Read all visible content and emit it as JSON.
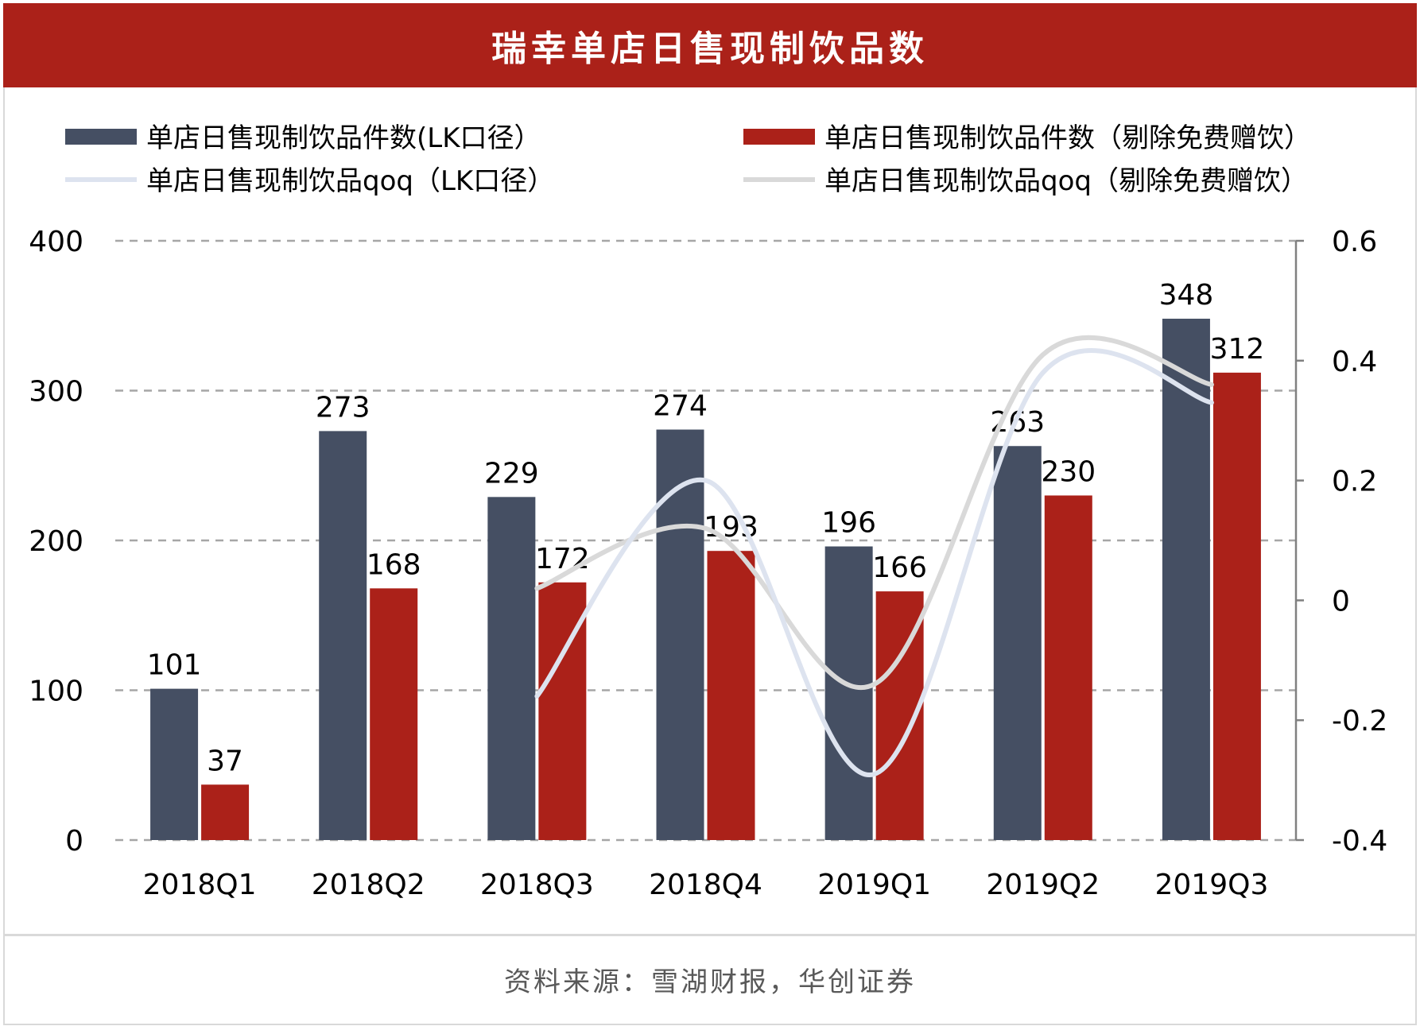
{
  "title": "瑞幸单店日售现制饮品数",
  "source": "资料来源：雪湖财报，华创证券",
  "colors": {
    "header_bg": "#ab2119",
    "bar_lk": "#454f63",
    "bar_excl": "#ab2119",
    "line_lk": "#dde3ef",
    "line_excl": "#d9d9d9"
  },
  "chart_data": {
    "type": "bar",
    "categories": [
      "2018Q1",
      "2018Q2",
      "2018Q3",
      "2018Q4",
      "2019Q1",
      "2019Q2",
      "2019Q3"
    ],
    "series": [
      {
        "name": "单店日售现制饮品件数(LK口径）",
        "kind": "bar",
        "axis": "left",
        "values": [
          101,
          273,
          229,
          274,
          196,
          263,
          348
        ]
      },
      {
        "name": "单店日售现制饮品件数（剔除免费赠饮）",
        "kind": "bar",
        "axis": "left",
        "values": [
          37,
          168,
          172,
          193,
          166,
          230,
          312
        ]
      },
      {
        "name": "单店日售现制饮品qoq（LK口径）",
        "kind": "line",
        "axis": "right",
        "values": [
          null,
          null,
          -0.16,
          0.2,
          -0.29,
          0.38,
          0.33
        ]
      },
      {
        "name": "单店日售现制饮品qoq（剔除免费赠饮）",
        "kind": "line",
        "axis": "right",
        "values": [
          null,
          null,
          0.02,
          0.12,
          -0.14,
          0.41,
          0.36
        ]
      }
    ],
    "y_left": {
      "min": 0,
      "max": 400,
      "ticks": [
        0,
        100,
        200,
        300,
        400
      ]
    },
    "y_right": {
      "min": -0.4,
      "max": 0.6,
      "ticks": [
        -0.4,
        -0.2,
        0,
        0.2,
        0.4,
        0.6
      ],
      "tick_labels": [
        "-0.4",
        "-0.2",
        "0",
        "0.2",
        "0.4",
        "0.6"
      ]
    },
    "grid": true,
    "legend_position": "top"
  }
}
